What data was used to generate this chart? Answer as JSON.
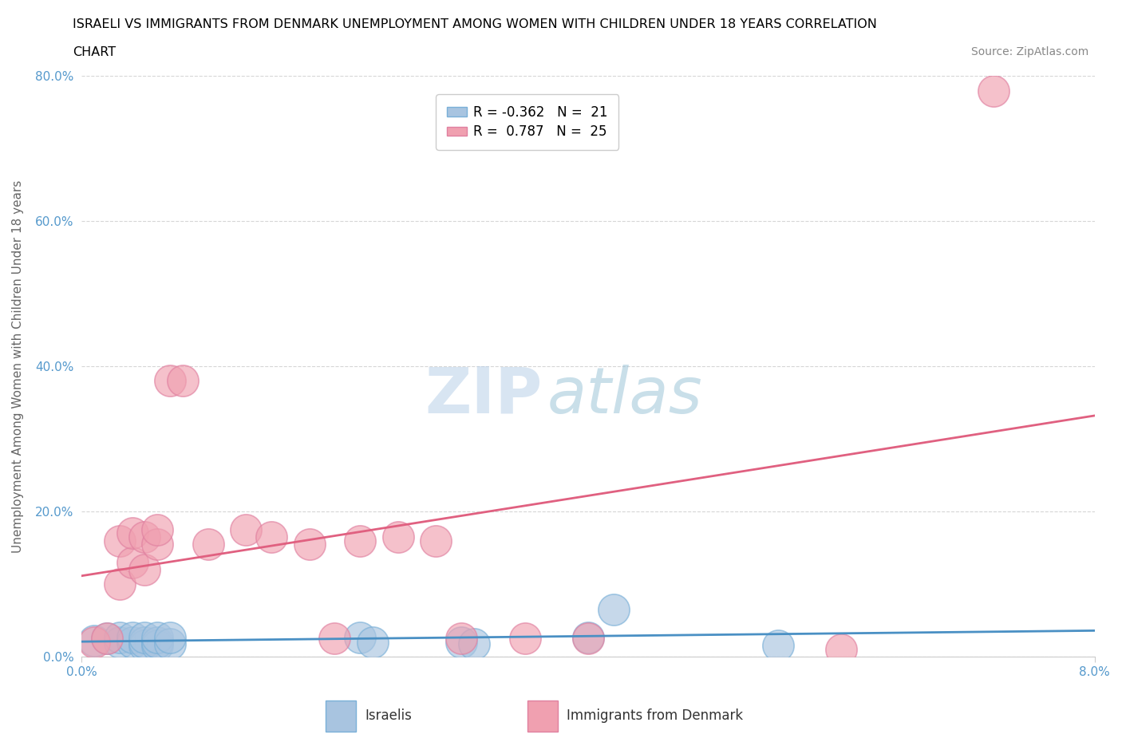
{
  "title_line1": "ISRAELI VS IMMIGRANTS FROM DENMARK UNEMPLOYMENT AMONG WOMEN WITH CHILDREN UNDER 18 YEARS CORRELATION",
  "title_line2": "CHART",
  "source": "Source: ZipAtlas.com",
  "xlabel_min": 0.0,
  "xlabel_max": 0.08,
  "ylabel_min": 0.0,
  "ylabel_max": 0.8,
  "xlabel_ticks": [
    0.0,
    0.08
  ],
  "xlabel_tick_labels": [
    "0.0%",
    "8.0%"
  ],
  "ylabel_ticks": [
    0.0,
    0.2,
    0.4,
    0.6,
    0.8
  ],
  "ylabel_tick_labels": [
    "0.0%",
    "20.0%",
    "40.0%",
    "60.0%",
    "80.0%"
  ],
  "watermark_zip": "ZIP",
  "watermark_atlas": "atlas",
  "legend_r1": "R = -0.362",
  "legend_n1": "N =  21",
  "legend_r2": "R =  0.787",
  "legend_n2": "N =  25",
  "blue_color": "#a8c4e0",
  "pink_color": "#f0a0b0",
  "blue_edge_color": "#7ab0d8",
  "pink_edge_color": "#e080a0",
  "blue_line_color": "#4a90c4",
  "pink_line_color": "#e06080",
  "israelis_x": [
    0.001,
    0.002,
    0.003,
    0.003,
    0.004,
    0.004,
    0.005,
    0.005,
    0.005,
    0.006,
    0.006,
    0.006,
    0.007,
    0.007,
    0.022,
    0.023,
    0.03,
    0.031,
    0.04,
    0.042,
    0.055
  ],
  "israelis_y": [
    0.022,
    0.025,
    0.02,
    0.026,
    0.02,
    0.026,
    0.015,
    0.02,
    0.026,
    0.015,
    0.02,
    0.026,
    0.018,
    0.026,
    0.026,
    0.02,
    0.02,
    0.018,
    0.026,
    0.065,
    0.015
  ],
  "denmark_x": [
    0.001,
    0.002,
    0.003,
    0.003,
    0.004,
    0.004,
    0.005,
    0.005,
    0.006,
    0.006,
    0.007,
    0.008,
    0.01,
    0.013,
    0.015,
    0.018,
    0.02,
    0.022,
    0.025,
    0.028,
    0.03,
    0.035,
    0.04,
    0.06,
    0.072
  ],
  "denmark_y": [
    0.02,
    0.025,
    0.1,
    0.16,
    0.13,
    0.17,
    0.12,
    0.165,
    0.155,
    0.175,
    0.38,
    0.38,
    0.155,
    0.175,
    0.165,
    0.155,
    0.025,
    0.16,
    0.165,
    0.16,
    0.025,
    0.025,
    0.025,
    0.01,
    0.78
  ]
}
